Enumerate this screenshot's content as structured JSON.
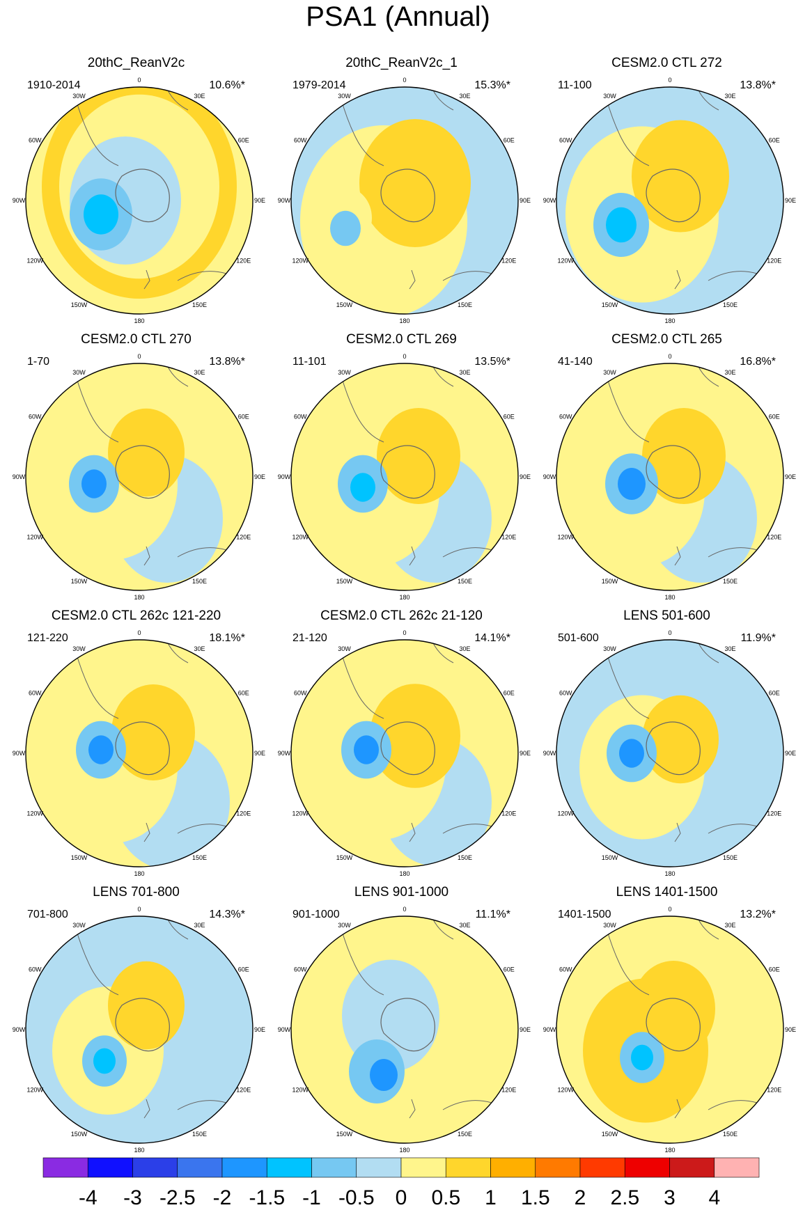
{
  "page": {
    "title": "PSA1 (Annual)"
  },
  "colors": {
    "levels": [
      "#8a2be2",
      "#1010ff",
      "#2b3fe8",
      "#3a75ee",
      "#1e96ff",
      "#00c3ff",
      "#76c8f2",
      "#b2ddf2",
      "#fff58c",
      "#ffd62c",
      "#ffaf00",
      "#ff7a00",
      "#ff3a00",
      "#ee0000",
      "#cc1a1a",
      "#ffb2b2"
    ],
    "coast": "#666666"
  },
  "chart_data": {
    "type": "polar-stereographic contour maps",
    "colorbar": {
      "bin_edges": [
        -4,
        -3.5,
        -3,
        -2.5,
        -2,
        -1.5,
        -1,
        -0.5,
        0,
        0.5,
        1,
        1.5,
        2,
        2.5,
        3,
        3.5,
        4
      ],
      "tick_labels": [
        "-4",
        "-3",
        "-2.5",
        "-2",
        "-1.5",
        "-1",
        "-0.5",
        "0",
        "0.5",
        "1",
        "1.5",
        "2",
        "2.5",
        "3",
        "4"
      ]
    },
    "longitude_labels": [
      "0",
      "30E",
      "60E",
      "90E",
      "120E",
      "150E",
      "180",
      "150W",
      "120W",
      "90W",
      "60W",
      "30W"
    ],
    "panels": [
      {
        "title": "20thC_ReanV2c",
        "period": "1910-2014",
        "variance": "10.6%*"
      },
      {
        "title": "20thC_ReanV2c_1",
        "period": "1979-2014",
        "variance": "15.3%*"
      },
      {
        "title": "CESM2.0 CTL 272",
        "period": "11-100",
        "variance": "13.8%*"
      },
      {
        "title": "CESM2.0 CTL 270",
        "period": "1-70",
        "variance": "13.8%*"
      },
      {
        "title": "CESM2.0 CTL 269",
        "period": "11-101",
        "variance": "13.5%*"
      },
      {
        "title": "CESM2.0 CTL 265",
        "period": "41-140",
        "variance": "16.8%*"
      },
      {
        "title": "CESM2.0 CTL 262c 121-220",
        "period": "121-220",
        "variance": "18.1%*"
      },
      {
        "title": "CESM2.0 CTL 262c 21-120",
        "period": "21-120",
        "variance": "14.1%*"
      },
      {
        "title": "LENS 501-600",
        "period": "501-600",
        "variance": "11.9%*"
      },
      {
        "title": "LENS 701-800",
        "period": "701-800",
        "variance": "14.3%*"
      },
      {
        "title": "LENS 901-1000",
        "period": "901-1000",
        "variance": "11.1%*"
      },
      {
        "title": "LENS 1401-1500",
        "period": "1401-1500",
        "variance": "13.2%*"
      }
    ]
  }
}
